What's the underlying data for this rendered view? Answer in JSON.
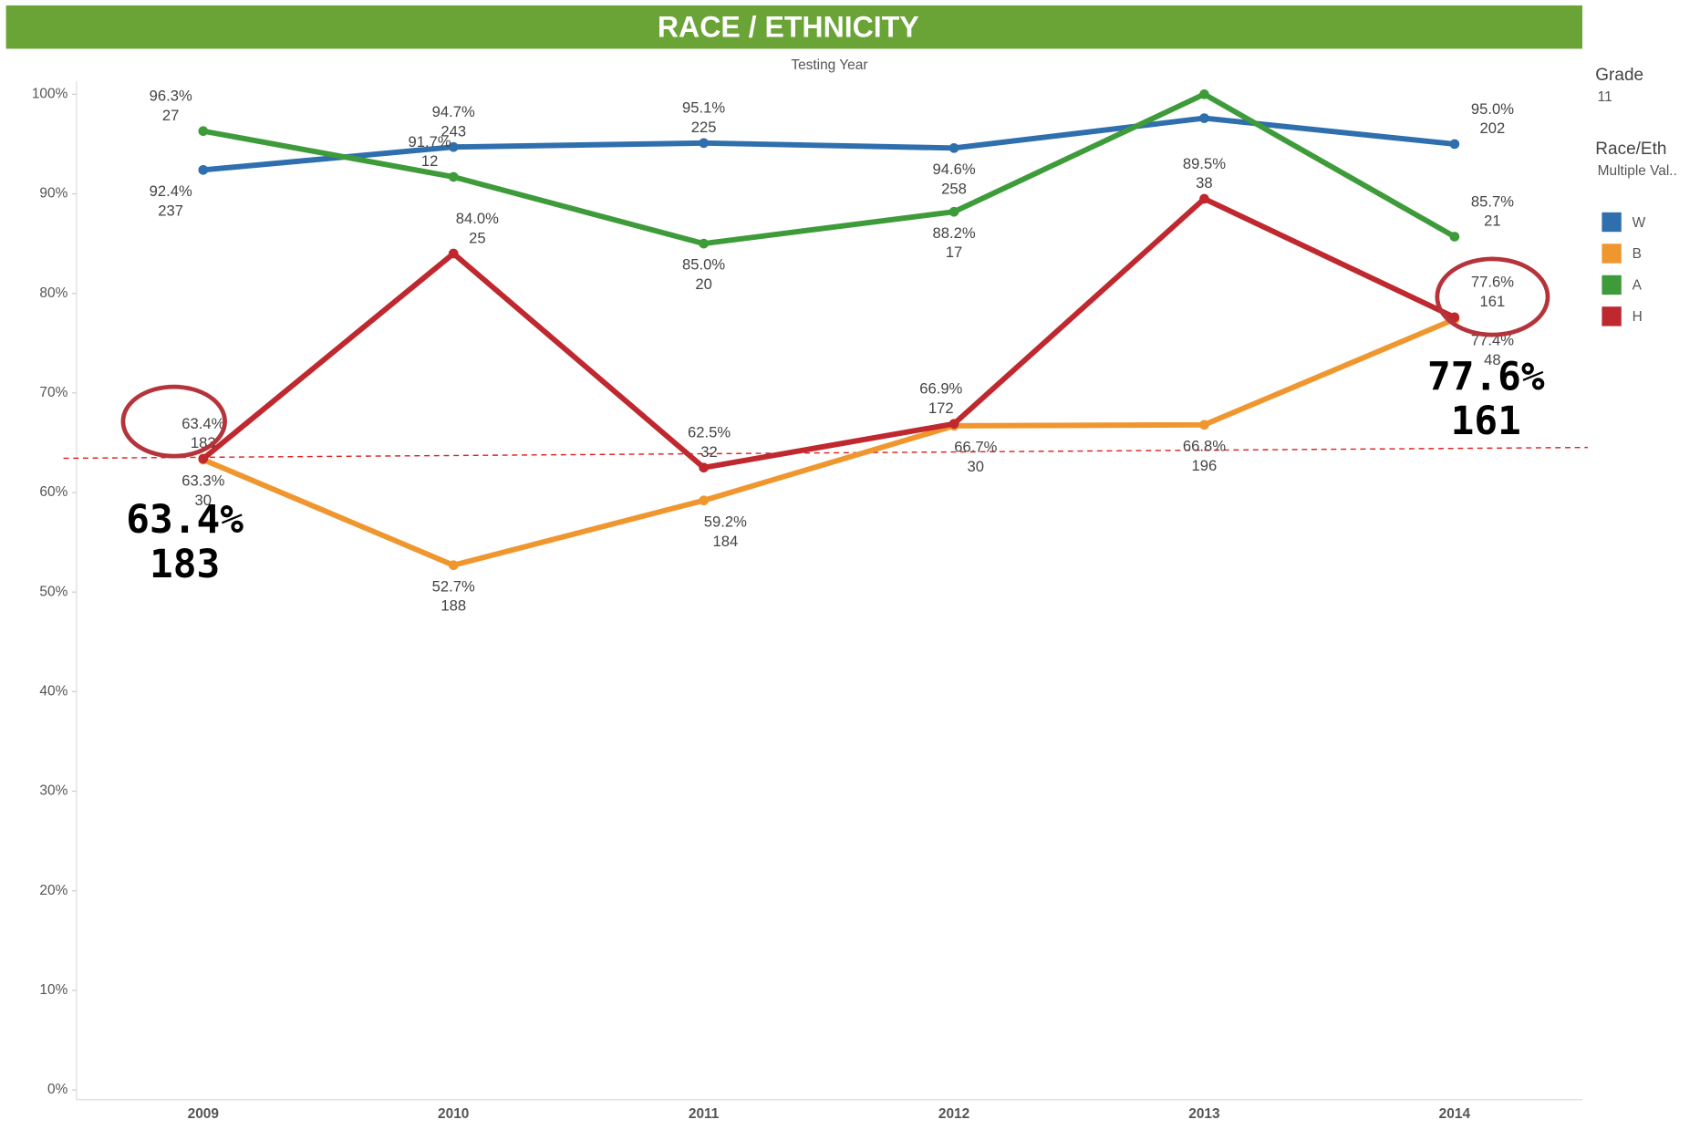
{
  "chart_data": {
    "type": "line",
    "title": "RACE / ETHNICITY",
    "x_label": "Testing Year",
    "categories": [
      "2009",
      "2010",
      "2011",
      "2012",
      "2013",
      "2014"
    ],
    "ylim": [
      0,
      100
    ],
    "yticks": [
      {
        "value": 0,
        "label": "0%"
      },
      {
        "value": 10,
        "label": "10%"
      },
      {
        "value": 20,
        "label": "20%"
      },
      {
        "value": 30,
        "label": "30%"
      },
      {
        "value": 40,
        "label": "40%"
      },
      {
        "value": 50,
        "label": "50%"
      },
      {
        "value": 60,
        "label": "60%"
      },
      {
        "value": 70,
        "label": "70%"
      },
      {
        "value": 80,
        "label": "80%"
      },
      {
        "value": 90,
        "label": "90%"
      },
      {
        "value": 100,
        "label": "100%"
      }
    ],
    "series": [
      {
        "name": "W",
        "color": "#2f6fad",
        "values": [
          92.4,
          94.7,
          95.1,
          94.6,
          97.6,
          95.0
        ],
        "value_labels": [
          "92.4%",
          "94.7%",
          "95.1%",
          "94.6%",
          null,
          "95.0%"
        ],
        "counts": [
          237,
          243,
          225,
          258,
          null,
          202
        ]
      },
      {
        "name": "B",
        "color": "#f0962e",
        "values": [
          63.3,
          52.7,
          59.2,
          66.7,
          66.8,
          77.4
        ],
        "value_labels": [
          "63.3%",
          "52.7%",
          "59.2%",
          "66.7%",
          "66.8%",
          "77.4%"
        ],
        "counts": [
          30,
          188,
          184,
          30,
          196,
          48
        ]
      },
      {
        "name": "A",
        "color": "#3e9b3a",
        "values": [
          96.3,
          91.7,
          85.0,
          88.2,
          100.0,
          85.7
        ],
        "value_labels": [
          "96.3%",
          "91.7%",
          "85.0%",
          "88.2%",
          null,
          "85.7%"
        ],
        "counts": [
          27,
          12,
          20,
          17,
          null,
          21
        ]
      },
      {
        "name": "H",
        "color": "#c0282f",
        "values": [
          63.4,
          84.0,
          62.5,
          66.9,
          89.5,
          77.6
        ],
        "value_labels": [
          "63.4%",
          "84.0%",
          "62.5%",
          "66.9%",
          "89.5%",
          "77.6%"
        ],
        "counts": [
          183,
          25,
          32,
          172,
          38,
          161
        ]
      }
    ],
    "filters": [
      {
        "name": "Grade",
        "value": "11"
      },
      {
        "name": "Race/Eth",
        "value": "Multiple Val.."
      }
    ],
    "annotations": [
      [
        "63.4%",
        "183"
      ],
      [
        "77.6%",
        "161"
      ]
    ]
  }
}
